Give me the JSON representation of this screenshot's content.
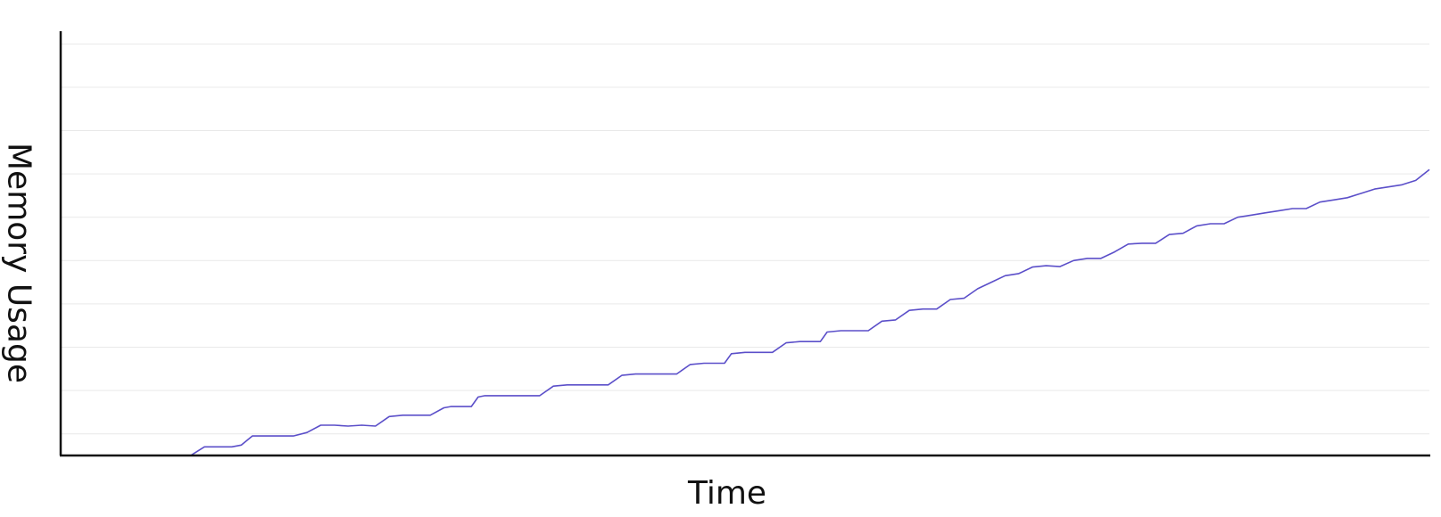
{
  "chart_data": {
    "type": "line",
    "title": "",
    "xlabel": "Time",
    "ylabel": "Memory Usage",
    "grid": true,
    "legend": "none",
    "colors": {
      "series": "#5b4fc9",
      "axis": "#111111",
      "grid": "#e9e9e9"
    },
    "xlim": [
      0,
      100
    ],
    "ylim": [
      0,
      100
    ],
    "gridlines_y": [
      5,
      15,
      25,
      35,
      45,
      55,
      65,
      75,
      85,
      95
    ],
    "series": [
      {
        "x": [
          0,
          9.5,
          10.5,
          12.5,
          13.2,
          14,
          15,
          17,
          18,
          19,
          20,
          21,
          22,
          23,
          24,
          25,
          26,
          27,
          28,
          28.5,
          29,
          30,
          30.5,
          31,
          32,
          33,
          34,
          35,
          36,
          37,
          38,
          39,
          40,
          41,
          42,
          43,
          44,
          45,
          46,
          47,
          48,
          48.5,
          49,
          50,
          51,
          52,
          53,
          54,
          55,
          55.5,
          56,
          57,
          58,
          59,
          60,
          61,
          62,
          63,
          64,
          65,
          66,
          67,
          68,
          69,
          70,
          71,
          72,
          73,
          74,
          75,
          76,
          77,
          78,
          79,
          80,
          81,
          82,
          83,
          84,
          85,
          86,
          87,
          88,
          89,
          90,
          91,
          92,
          93,
          94,
          95,
          96,
          97,
          98,
          99,
          100
        ],
        "y": [
          0,
          0,
          2,
          2,
          2.4,
          4.5,
          4.5,
          4.5,
          5.3,
          7,
          7,
          6.8,
          7,
          6.8,
          9,
          9.3,
          9.3,
          9.3,
          11,
          11.3,
          11.3,
          11.3,
          13.5,
          13.8,
          13.8,
          13.8,
          13.8,
          13.8,
          16,
          16.3,
          16.3,
          16.3,
          16.3,
          18.5,
          18.8,
          18.8,
          18.8,
          18.8,
          21,
          21.3,
          21.3,
          21.3,
          23.5,
          23.8,
          23.8,
          23.8,
          26,
          26.3,
          26.3,
          26.3,
          28.5,
          28.8,
          28.8,
          28.8,
          31,
          31.3,
          33.5,
          33.8,
          33.8,
          36,
          36.3,
          38.5,
          40,
          41.5,
          42,
          43.5,
          43.8,
          43.6,
          45,
          45.5,
          45.5,
          47,
          48.8,
          49,
          49,
          51,
          51.3,
          53,
          53.5,
          53.5,
          55,
          55.5,
          56,
          56.5,
          57,
          57,
          58.5,
          59,
          59.5,
          60.5,
          61.5,
          62,
          62.5,
          63.5,
          66
        ]
      }
    ]
  }
}
